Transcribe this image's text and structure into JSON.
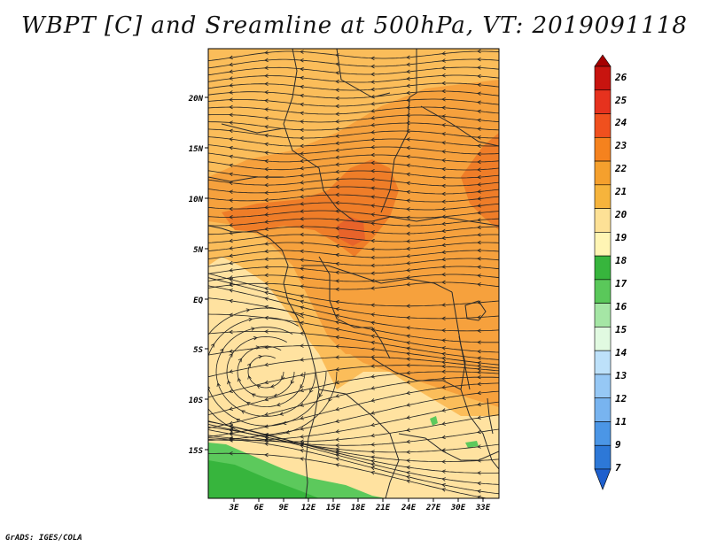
{
  "title": "WBPT [C] and Sreamline at 500hPa, VT: 2019091118",
  "footer": "GrADS: IGES/COLA",
  "map": {
    "lat_labels": [
      "20N",
      "15N",
      "10N",
      "5N",
      "EQ",
      "5S",
      "10S",
      "15S"
    ],
    "lon_labels": [
      "3E",
      "6E",
      "9E",
      "12E",
      "15E",
      "18E",
      "21E",
      "24E",
      "27E",
      "30E",
      "33E"
    ],
    "fill_colors": {
      "base": "#ffe2a0",
      "light_orange": "#fbbd5a",
      "orange": "#f6a13d",
      "dark_orange": "#ef7d28",
      "deep_orange": "#e8632a",
      "green_dark": "#37b53d",
      "green": "#5cc95c",
      "border": "#2a2a2a",
      "streamline": "#222222"
    }
  },
  "colorbar": {
    "labels": [
      "26",
      "25",
      "24",
      "23",
      "22",
      "21",
      "20",
      "19",
      "18",
      "17",
      "16",
      "15",
      "14",
      "13",
      "12",
      "11",
      "9",
      "7"
    ],
    "colors": [
      "#a50000",
      "#c8140f",
      "#e6321e",
      "#f0501e",
      "#f5821e",
      "#f5a02d",
      "#f6b43c",
      "#fde196",
      "#fff5b4",
      "#37b53d",
      "#5ac85a",
      "#a5e6a5",
      "#e1fae1",
      "#bde1fa",
      "#96c8f5",
      "#78b4f0",
      "#4b96e6",
      "#2d78d7",
      "#1e5fcd"
    ]
  }
}
